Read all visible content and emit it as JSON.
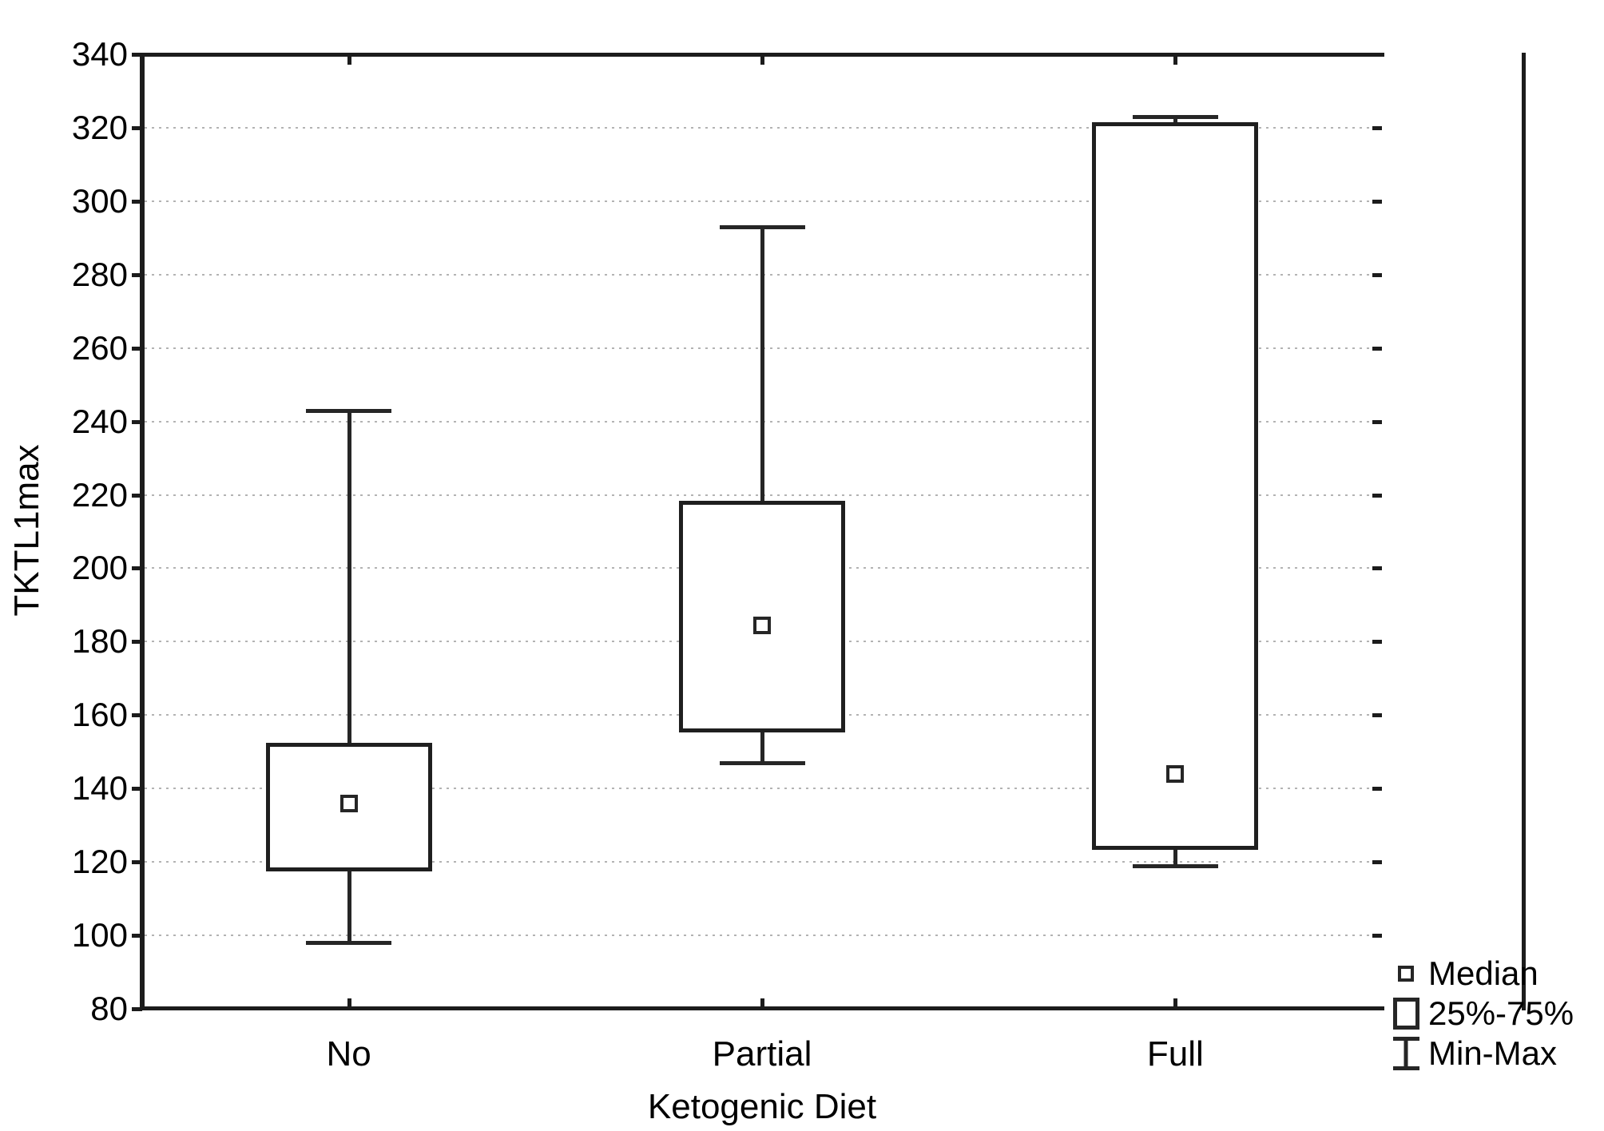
{
  "figure": {
    "y_axis": {
      "label": "TKTL1max",
      "min": 80,
      "max": 340,
      "tick_step": 20,
      "ticks": [
        340,
        320,
        300,
        280,
        260,
        240,
        220,
        200,
        180,
        160,
        140,
        120,
        100,
        80
      ]
    },
    "x_axis": {
      "label": "Ketogenic Diet",
      "categories": [
        "No",
        "Partial",
        "Full"
      ]
    },
    "legend": {
      "items": [
        {
          "icon": "median-square-icon",
          "label": "Median"
        },
        {
          "icon": "iqr-box-icon",
          "label": "25%-75%"
        },
        {
          "icon": "min-max-whisker-icon",
          "label": "Min-Max"
        }
      ]
    }
  },
  "chart_data": {
    "type": "boxplot",
    "title": "",
    "xlabel": "Ketogenic Diet",
    "ylabel": "TKTL1max",
    "ylim": [
      80,
      340
    ],
    "ytick_interval": 20,
    "grid": "horizontal dotted light-gray at every 20 units",
    "legend_position": "bottom-right",
    "legend": [
      "Median",
      "25%-75%",
      "Min-Max"
    ],
    "marker_style": "open squares for median; unfilled boxes; capped whiskers",
    "line_color": "#1c1c1c",
    "categories": [
      "No",
      "Partial",
      "Full"
    ],
    "series": [
      {
        "category": "No",
        "min": 98,
        "q1": 118,
        "median": 136,
        "q3": 152,
        "max": 243
      },
      {
        "category": "Partial",
        "min": 147,
        "q1": 156,
        "median": 184.5,
        "q3": 218,
        "max": 293
      },
      {
        "category": "Full",
        "min": 119,
        "q1": 124,
        "median": 144,
        "q3": 321,
        "max": 323
      }
    ]
  }
}
